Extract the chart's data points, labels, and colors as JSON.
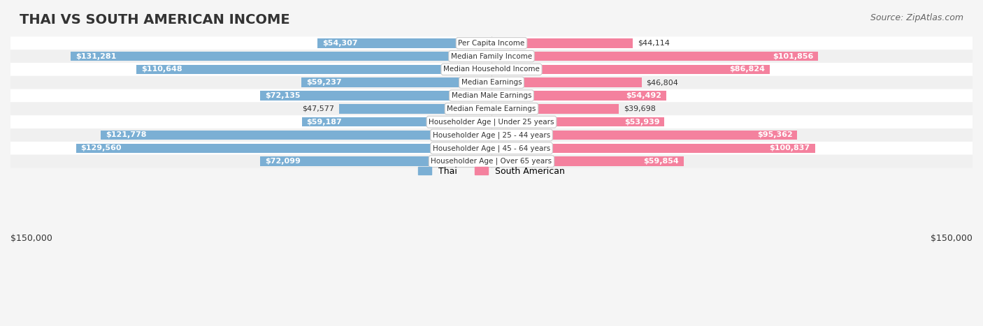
{
  "title": "THAI VS SOUTH AMERICAN INCOME",
  "source": "Source: ZipAtlas.com",
  "categories": [
    "Per Capita Income",
    "Median Family Income",
    "Median Household Income",
    "Median Earnings",
    "Median Male Earnings",
    "Median Female Earnings",
    "Householder Age | Under 25 years",
    "Householder Age | 25 - 44 years",
    "Householder Age | 45 - 64 years",
    "Householder Age | Over 65 years"
  ],
  "thai_values": [
    54307,
    131281,
    110648,
    59237,
    72135,
    47577,
    59187,
    121778,
    129560,
    72099
  ],
  "south_american_values": [
    44114,
    101856,
    86824,
    46804,
    54492,
    39698,
    53939,
    95362,
    100837,
    59854
  ],
  "thai_labels": [
    "$54,307",
    "$131,281",
    "$110,648",
    "$59,237",
    "$72,135",
    "$47,577",
    "$59,187",
    "$121,778",
    "$129,560",
    "$72,099"
  ],
  "sa_labels": [
    "$44,114",
    "$101,856",
    "$86,824",
    "$46,804",
    "$54,492",
    "$39,698",
    "$53,939",
    "$95,362",
    "$100,837",
    "$59,854"
  ],
  "thai_color": "#7bafd4",
  "sa_color": "#f4819e",
  "thai_color_dark": "#5b8db8",
  "sa_color_dark": "#e05a80",
  "max_value": 150000,
  "xlabel_left": "$150,000",
  "xlabel_right": "$150,000",
  "legend_thai": "Thai",
  "legend_sa": "South American",
  "bg_color": "#f5f5f5",
  "bar_bg_color": "#e8e8e8",
  "row_bg_color": "#ffffff",
  "row_alt_bg_color": "#f0f0f0",
  "label_box_color": "#ffffff",
  "title_color": "#333333",
  "source_color": "#666666"
}
